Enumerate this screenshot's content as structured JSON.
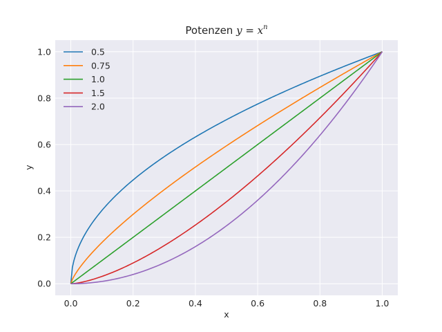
{
  "chart_data": {
    "type": "line",
    "title": {
      "prefix": "Potenzen ",
      "math_y": "y",
      "math_eq": " = ",
      "math_x": "x",
      "math_exp": "n"
    },
    "xlabel": "x",
    "ylabel": "y",
    "xlim": [
      -0.05,
      1.05
    ],
    "ylim": [
      -0.05,
      1.05
    ],
    "xticks": [
      0.0,
      0.2,
      0.4,
      0.6,
      0.8,
      1.0
    ],
    "xtick_labels": [
      "0.0",
      "0.2",
      "0.4",
      "0.6",
      "0.8",
      "1.0"
    ],
    "yticks": [
      0.0,
      0.2,
      0.4,
      0.6,
      0.8,
      1.0
    ],
    "ytick_labels": [
      "0.0",
      "0.2",
      "0.4",
      "0.6",
      "0.8",
      "1.0"
    ],
    "grid": true,
    "legend_position": "top-left",
    "x_domain": [
      0,
      1
    ],
    "function": "y = x^n",
    "series": [
      {
        "name": "0.5",
        "exponent": 0.5,
        "color": "#1f77b4"
      },
      {
        "name": "0.75",
        "exponent": 0.75,
        "color": "#ff7f0e"
      },
      {
        "name": "1.0",
        "exponent": 1.0,
        "color": "#2ca02c"
      },
      {
        "name": "1.5",
        "exponent": 1.5,
        "color": "#d62728"
      },
      {
        "name": "2.0",
        "exponent": 2.0,
        "color": "#9467bd"
      }
    ],
    "background_color": "#eaeaf2",
    "grid_color": "#ffffff"
  }
}
